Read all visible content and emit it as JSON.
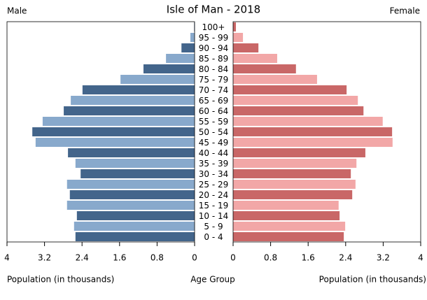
{
  "chart_data": {
    "type": "pyramid",
    "title": "Isle of Man - 2018",
    "xlabel": "Population (in thousands)",
    "center_label": "Age Group",
    "categories": [
      "0 - 4",
      "5 - 9",
      "10 - 14",
      "15 - 19",
      "20 - 24",
      "25 - 29",
      "30 - 34",
      "35 - 39",
      "40 - 44",
      "45 - 49",
      "50 - 54",
      "55 - 59",
      "60 - 64",
      "65 - 69",
      "70 - 74",
      "75 - 79",
      "80 - 84",
      "85 - 89",
      "90 - 94",
      "95 - 99",
      "100+"
    ],
    "series": [
      {
        "name": "Male",
        "colors": [
          "#43658b",
          "#88a9cc"
        ],
        "values": [
          2.54,
          2.57,
          2.51,
          2.72,
          2.66,
          2.72,
          2.43,
          2.54,
          2.7,
          3.39,
          3.46,
          3.24,
          2.79,
          2.64,
          2.39,
          1.58,
          1.09,
          0.61,
          0.28,
          0.09,
          0.01
        ]
      },
      {
        "name": "Female",
        "colors": [
          "#c96767",
          "#f2a7a7"
        ],
        "values": [
          2.36,
          2.39,
          2.27,
          2.25,
          2.54,
          2.61,
          2.51,
          2.63,
          2.82,
          3.4,
          3.39,
          3.19,
          2.78,
          2.66,
          2.42,
          1.79,
          1.34,
          0.94,
          0.54,
          0.21,
          0.06
        ]
      }
    ],
    "xlim": [
      0,
      4
    ],
    "xticks": [
      0,
      0.8,
      1.6,
      2.4,
      3.2,
      4
    ]
  }
}
